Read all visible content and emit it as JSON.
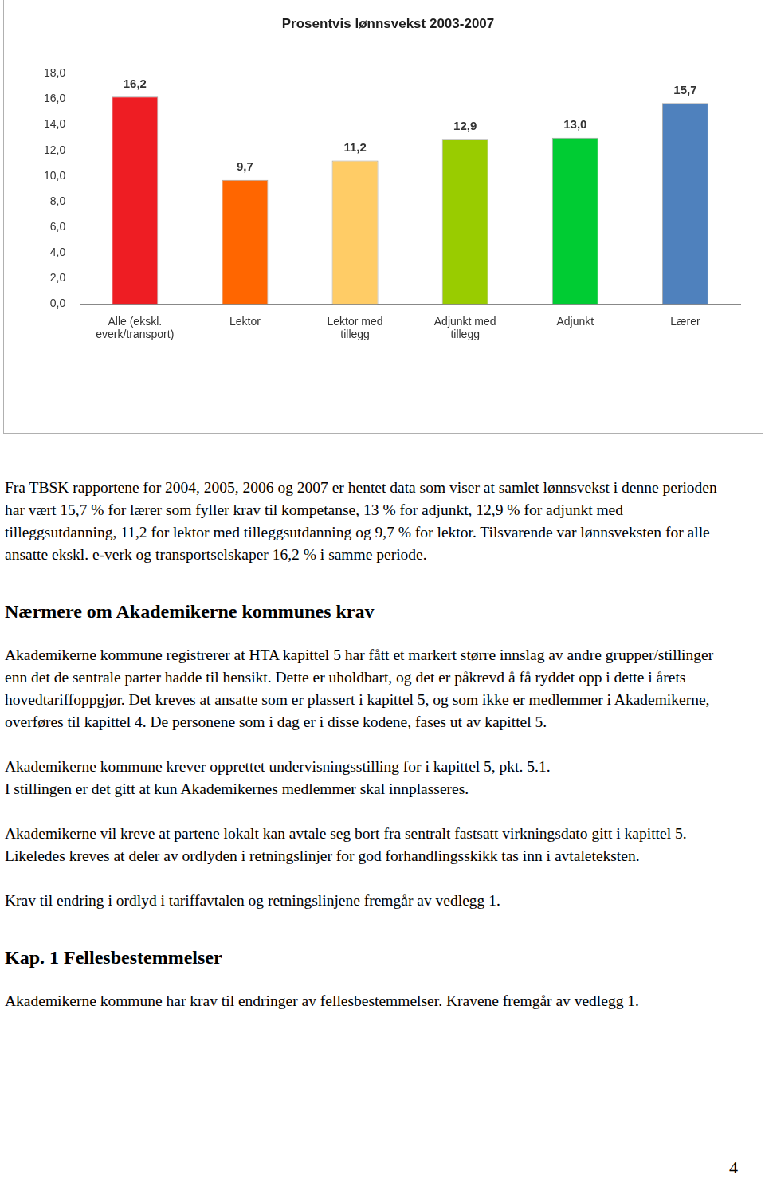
{
  "chart_data": {
    "type": "bar",
    "title": "Prosentvis lønnsvekst 2003-2007",
    "categories": [
      [
        "Alle (ekskl.",
        "everk/transport)"
      ],
      "Lektor",
      [
        "Lektor med",
        "tillegg"
      ],
      [
        "Adjunkt med",
        "tillegg"
      ],
      "Adjunkt",
      "Lærer"
    ],
    "values": [
      16.2,
      9.7,
      11.2,
      12.9,
      13.0,
      15.7
    ],
    "value_labels": [
      "16,2",
      "9,7",
      "11,2",
      "12,9",
      "13,0",
      "15,7"
    ],
    "colors": [
      "#ee1d23",
      "#ff6600",
      "#ffcc66",
      "#99cc00",
      "#00cc33",
      "#4f81bd"
    ],
    "ylim": [
      0,
      18
    ],
    "yticks": [
      {
        "value": 0,
        "label": "0,0"
      },
      {
        "value": 2,
        "label": "2,0"
      },
      {
        "value": 4,
        "label": "4,0"
      },
      {
        "value": 6,
        "label": "6,0"
      },
      {
        "value": 8,
        "label": "8,0"
      },
      {
        "value": 10,
        "label": "10,0"
      },
      {
        "value": 12,
        "label": "12,0"
      },
      {
        "value": 14,
        "label": "14,0"
      },
      {
        "value": 16,
        "label": "16,0"
      },
      {
        "value": 18,
        "label": "18,0"
      }
    ],
    "grid": false,
    "data_labels": true
  },
  "document": {
    "blocks": [
      {
        "paragraph": [
          "Fra TBSK rapportene for 2004, 2005, 2006 og 2007 er hentet data som viser at samlet lønnsvekst i denne perioden har vært 15,7 % for lærer som fyller krav til kompetanse, 13 % for adjunkt, 12,9 % for adjunkt med tilleggsutdanning, 11,2 for lektor med tilleggsutdanning og 9,7 % for lektor. Tilsvarende var lønnsveksten for alle ansatte ekskl. e-verk og transportselskaper 16,2 % i samme periode."
        ]
      },
      {
        "heading": "Nærmere om Akademikerne kommunes krav"
      },
      {
        "paragraph": [
          "Akademikerne kommune registrerer at HTA kapittel 5 har fått et markert større innslag av andre grupper/stillinger enn det de sentrale parter hadde til hensikt. Dette er uholdbart, og det er påkrevd å få ryddet opp i dette i årets hovedtariffoppgjør. Det kreves at ansatte som er plassert i kapittel 5, og som ikke er medlemmer i Akademikerne, overføres til kapittel 4. De personene som i dag er i disse kodene, fases ut av kapittel 5."
        ]
      },
      {
        "paragraph": [
          "Akademikerne kommune krever opprettet undervisningsstilling for i kapittel 5, pkt. 5.1.",
          "I stillingen er det gitt at kun Akademikernes medlemmer skal innplasseres."
        ]
      },
      {
        "paragraph": [
          "Akademikerne vil kreve at partene lokalt kan avtale seg bort fra sentralt fastsatt virkningsdato gitt i kapittel 5. Likeledes kreves at deler av ordlyden i retningslinjer for god forhandlingsskikk tas inn i avtaleteksten."
        ]
      },
      {
        "paragraph": [
          "Krav til endring i ordlyd i tariffavtalen og retningslinjene fremgår av vedlegg 1."
        ]
      },
      {
        "heading": "Kap. 1 Fellesbestemmelser"
      },
      {
        "paragraph": [
          "Akademikerne kommune har krav til endringer av fellesbestemmelser. Kravene fremgår av vedlegg 1."
        ]
      }
    ],
    "page_number": "4"
  }
}
